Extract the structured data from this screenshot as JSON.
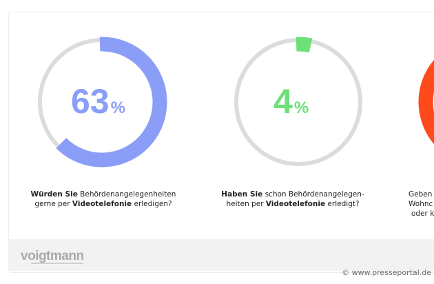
{
  "charts": [
    {
      "value": 63,
      "label": "63",
      "unit": "%",
      "color": "#8a9ef7",
      "question": {
        "bold1": "Würden Sie",
        "text1": " Behördenangelegenheiten",
        "text2a": "gerne per ",
        "bold2": "Videotelefonie",
        "text2b": " erledigen?"
      }
    },
    {
      "value": 4,
      "label": "4",
      "unit": "%",
      "color": "#6ee07a",
      "question": {
        "bold1": "Haben Sie",
        "text1": " schon Behördenangelegen-",
        "text2a": "heiten per ",
        "bold2": "Videotelefonie",
        "text2b": " erledigt?"
      }
    },
    {
      "color": "#ff4a1c",
      "question": {
        "line1": "Geben",
        "line2": "Wohnc",
        "line3": "oder k"
      }
    }
  ],
  "track_color": "#dcdcdc",
  "footer": {
    "logo": "voigtmann",
    "credit": "© www.presseportal.de"
  }
}
